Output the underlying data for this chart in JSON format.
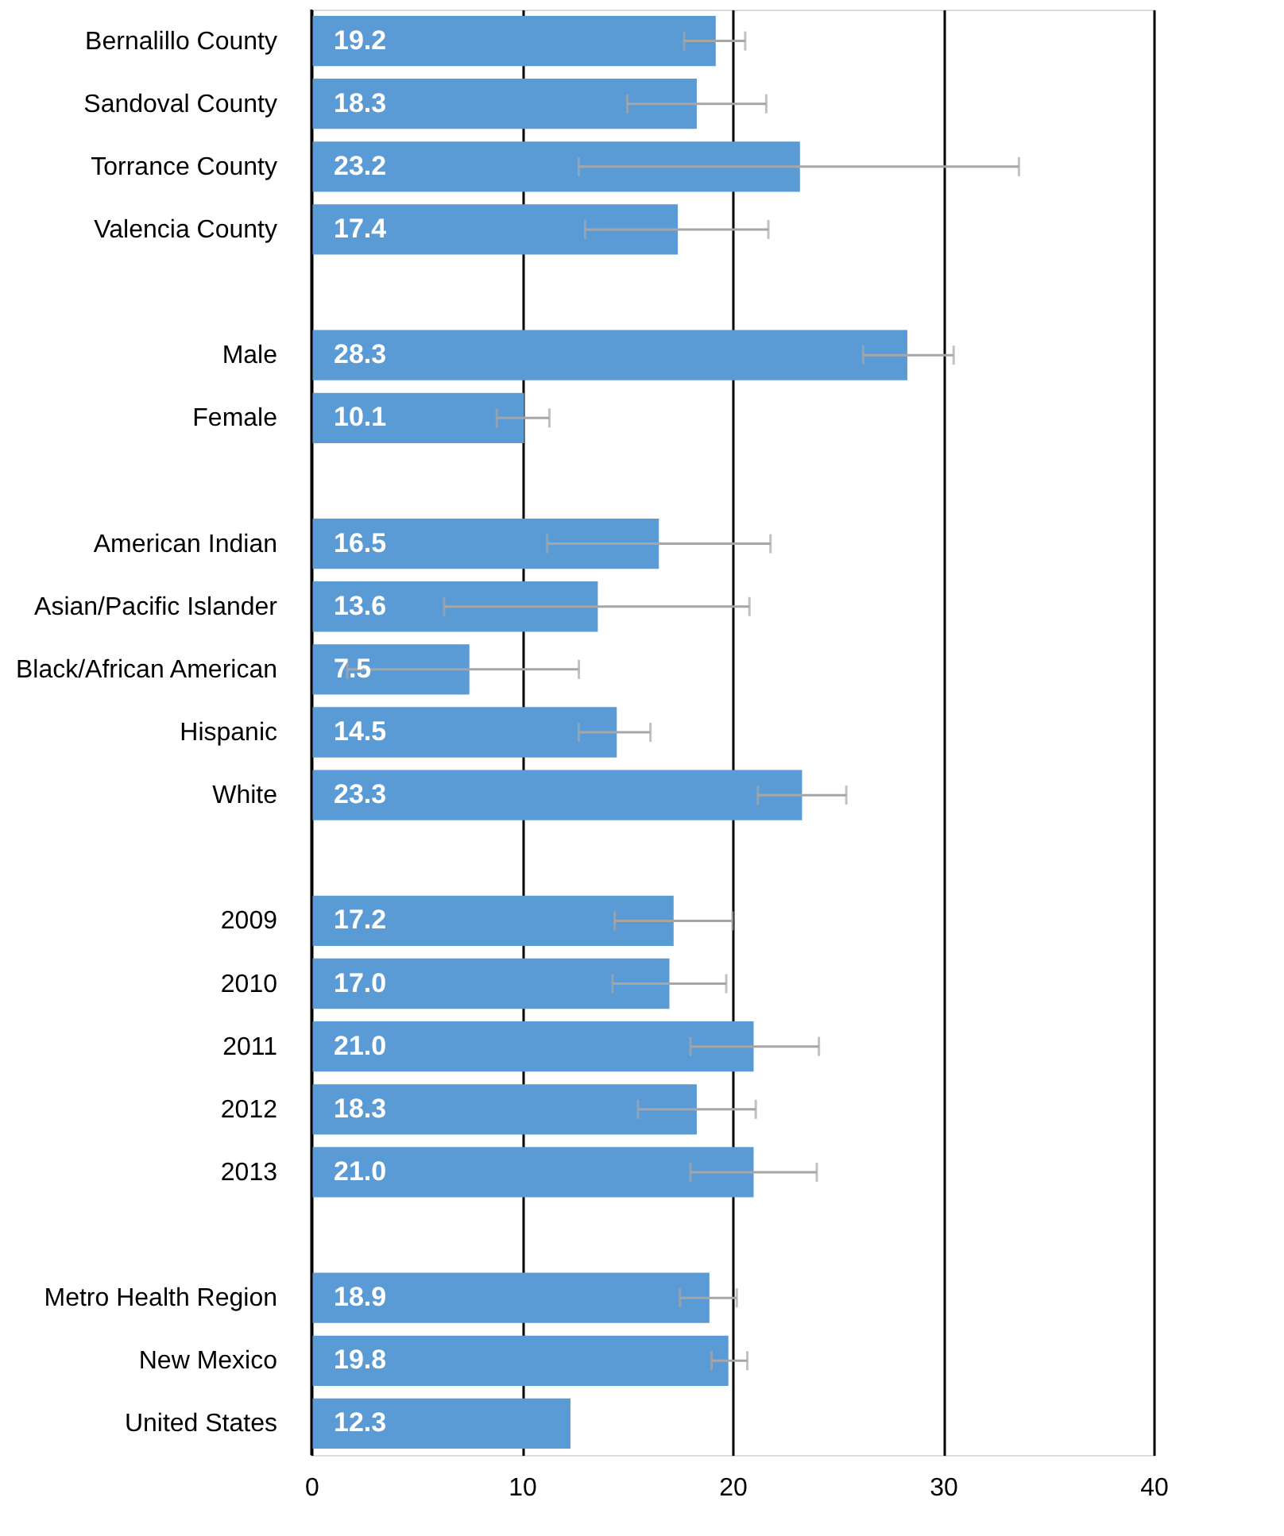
{
  "chart_data": {
    "type": "bar",
    "orientation": "horizontal",
    "categories": [
      "Bernalillo County",
      "Sandoval County",
      "Torrance County",
      "Valencia County",
      null,
      "Male",
      "Female",
      null,
      "American Indian",
      "Asian/Pacific Islander",
      "Black/African American",
      "Hispanic",
      "White",
      null,
      "2009",
      "2010",
      "2011",
      "2012",
      "2013",
      null,
      "Metro Health Region",
      "New Mexico",
      "United States"
    ],
    "values": [
      19.2,
      18.3,
      23.2,
      17.4,
      null,
      28.3,
      10.1,
      null,
      16.5,
      13.6,
      7.5,
      14.5,
      23.3,
      null,
      17.2,
      17.0,
      21.0,
      18.3,
      21.0,
      null,
      18.9,
      19.8,
      12.3
    ],
    "value_labels": [
      "19.2",
      "18.3",
      "23.2",
      "17.4",
      null,
      "28.3",
      "10.1",
      null,
      "16.5",
      "13.6",
      "7.5",
      "14.5",
      "23.3",
      null,
      "17.2",
      "17.0",
      "21.0",
      "18.3",
      "21.0",
      null,
      "18.9",
      "19.8",
      "12.3"
    ],
    "errors": [
      [
        17.7,
        20.6
      ],
      [
        15.0,
        21.6
      ],
      [
        12.7,
        33.6
      ],
      [
        13.0,
        21.7
      ],
      null,
      [
        26.2,
        30.5
      ],
      [
        8.8,
        11.3
      ],
      null,
      [
        11.2,
        21.8
      ],
      [
        6.3,
        20.8
      ],
      [
        1.7,
        12.7
      ],
      [
        12.7,
        16.1
      ],
      [
        21.2,
        25.4
      ],
      null,
      [
        14.4,
        20.0
      ],
      [
        14.3,
        19.7
      ],
      [
        18.0,
        24.1
      ],
      [
        15.5,
        21.1
      ],
      [
        18.0,
        24.0
      ],
      null,
      [
        17.5,
        20.2
      ],
      [
        19.0,
        20.7
      ],
      null
    ],
    "color": "#5b9bd5",
    "xlim": [
      0,
      40
    ],
    "xticks": [
      0,
      10,
      20,
      30,
      40
    ],
    "grid": "x"
  }
}
